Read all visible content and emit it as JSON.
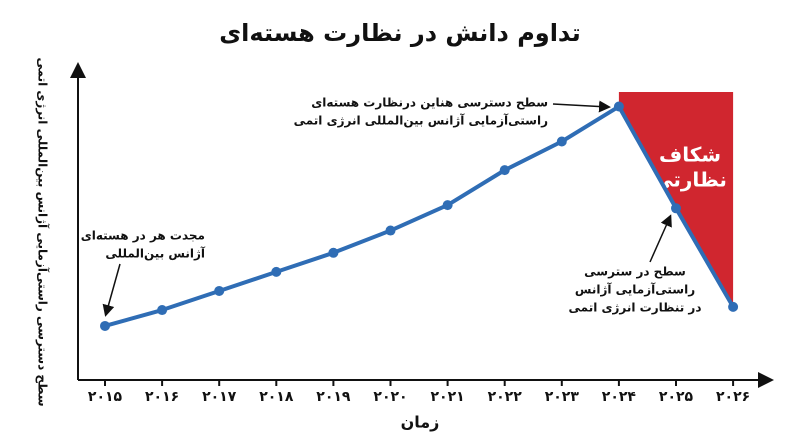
{
  "chart_data": {
    "type": "line",
    "title": "تداوم دانش در نظارت هسته‌ای",
    "x_label": "زمان",
    "y_label": "سطح دسترسی راستی‌آزمایی آژانس بین‌المللی انرژی اتمی",
    "categories": [
      "۲۰۱۵",
      "۲۰۱۶",
      "۲۰۱۷",
      "۲۰۱۸",
      "۲۰۱۹",
      "۲۰۲۰",
      "۲۰۲۱",
      "۲۰۲۲",
      "۲۰۲۳",
      "۲۰۲۴",
      "۲۰۲۵",
      "۲۰۲۶"
    ],
    "values": [
      17,
      22,
      28,
      34,
      40,
      47,
      55,
      66,
      75,
      86,
      54,
      23
    ],
    "color": "#2f6db5",
    "ylim": [
      0,
      100
    ],
    "gap_color": "#d0262f",
    "gap_label": [
      "شکاف",
      "نظارتی"
    ],
    "annotations": [
      {
        "lines": [
          "مجدت هر در هسته‌ای",
          "آژانس بین‌المللی"
        ]
      },
      {
        "lines": [
          "سطح دسترسی هناین درنظارت هسته‌ای",
          "راستی‌آزمایی آژانس بین‌المللی انرژی اتمی"
        ]
      },
      {
        "lines": [
          "سطح در سترسی",
          "راستی‌آزمایی آژانس",
          "در تنظارت انرژی اتمی"
        ]
      }
    ]
  }
}
